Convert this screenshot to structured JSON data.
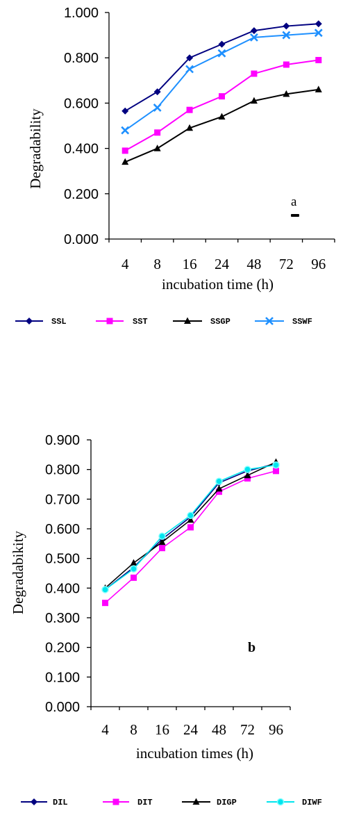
{
  "chart_data": [
    {
      "type": "line",
      "panel_label": "a",
      "ylabel": "Degradability",
      "xlabel": "incubation time (h)",
      "categories": [
        "4",
        "8",
        "16",
        "24",
        "48",
        "72",
        "96"
      ],
      "ylim": [
        0,
        1.0
      ],
      "yticks": [
        "0.000",
        "0.200",
        "0.400",
        "0.600",
        "0.800",
        "1.000"
      ],
      "grid": false,
      "legend_position": "bottom",
      "series": [
        {
          "name": "SSL",
          "color": "#000080",
          "marker": "diamond",
          "values": [
            0.565,
            0.65,
            0.8,
            0.86,
            0.92,
            0.94,
            0.95
          ]
        },
        {
          "name": "SST",
          "color": "#ff00ff",
          "marker": "square",
          "values": [
            0.39,
            0.47,
            0.57,
            0.63,
            0.73,
            0.77,
            0.79
          ]
        },
        {
          "name": "SSGP",
          "color": "#000000",
          "marker": "triangle",
          "values": [
            0.34,
            0.4,
            0.49,
            0.54,
            0.61,
            0.64,
            0.66
          ]
        },
        {
          "name": "SSWF",
          "color": "#1e90ff",
          "marker": "x",
          "values": [
            0.48,
            0.58,
            0.75,
            0.82,
            0.89,
            0.9,
            0.91
          ]
        }
      ]
    },
    {
      "type": "line",
      "panel_label": "b",
      "ylabel": "Degradabikity",
      "xlabel": "incubation times (h)",
      "categories": [
        "4",
        "8",
        "16",
        "24",
        "48",
        "72",
        "96"
      ],
      "ylim": [
        0,
        0.9
      ],
      "yticks": [
        "0.000",
        "0.100",
        "0.200",
        "0.300",
        "0.400",
        "0.500",
        "0.600",
        "0.700",
        "0.800",
        "0.900"
      ],
      "grid": false,
      "legend_position": "bottom",
      "series": [
        {
          "name": "DIL",
          "color": "#000080",
          "marker": "diamond",
          "values": [
            0.395,
            0.47,
            0.565,
            0.64,
            0.755,
            0.795,
            0.82
          ]
        },
        {
          "name": "DIT",
          "color": "#ff00ff",
          "marker": "square",
          "values": [
            0.35,
            0.435,
            0.535,
            0.605,
            0.725,
            0.77,
            0.795
          ]
        },
        {
          "name": "DIGP",
          "color": "#000000",
          "marker": "triangle",
          "values": [
            0.4,
            0.485,
            0.555,
            0.63,
            0.735,
            0.78,
            0.825
          ]
        },
        {
          "name": "DIWF",
          "color": "#00e5ee",
          "marker": "circle",
          "values": [
            0.395,
            0.465,
            0.575,
            0.645,
            0.76,
            0.8,
            0.815
          ]
        }
      ]
    }
  ]
}
